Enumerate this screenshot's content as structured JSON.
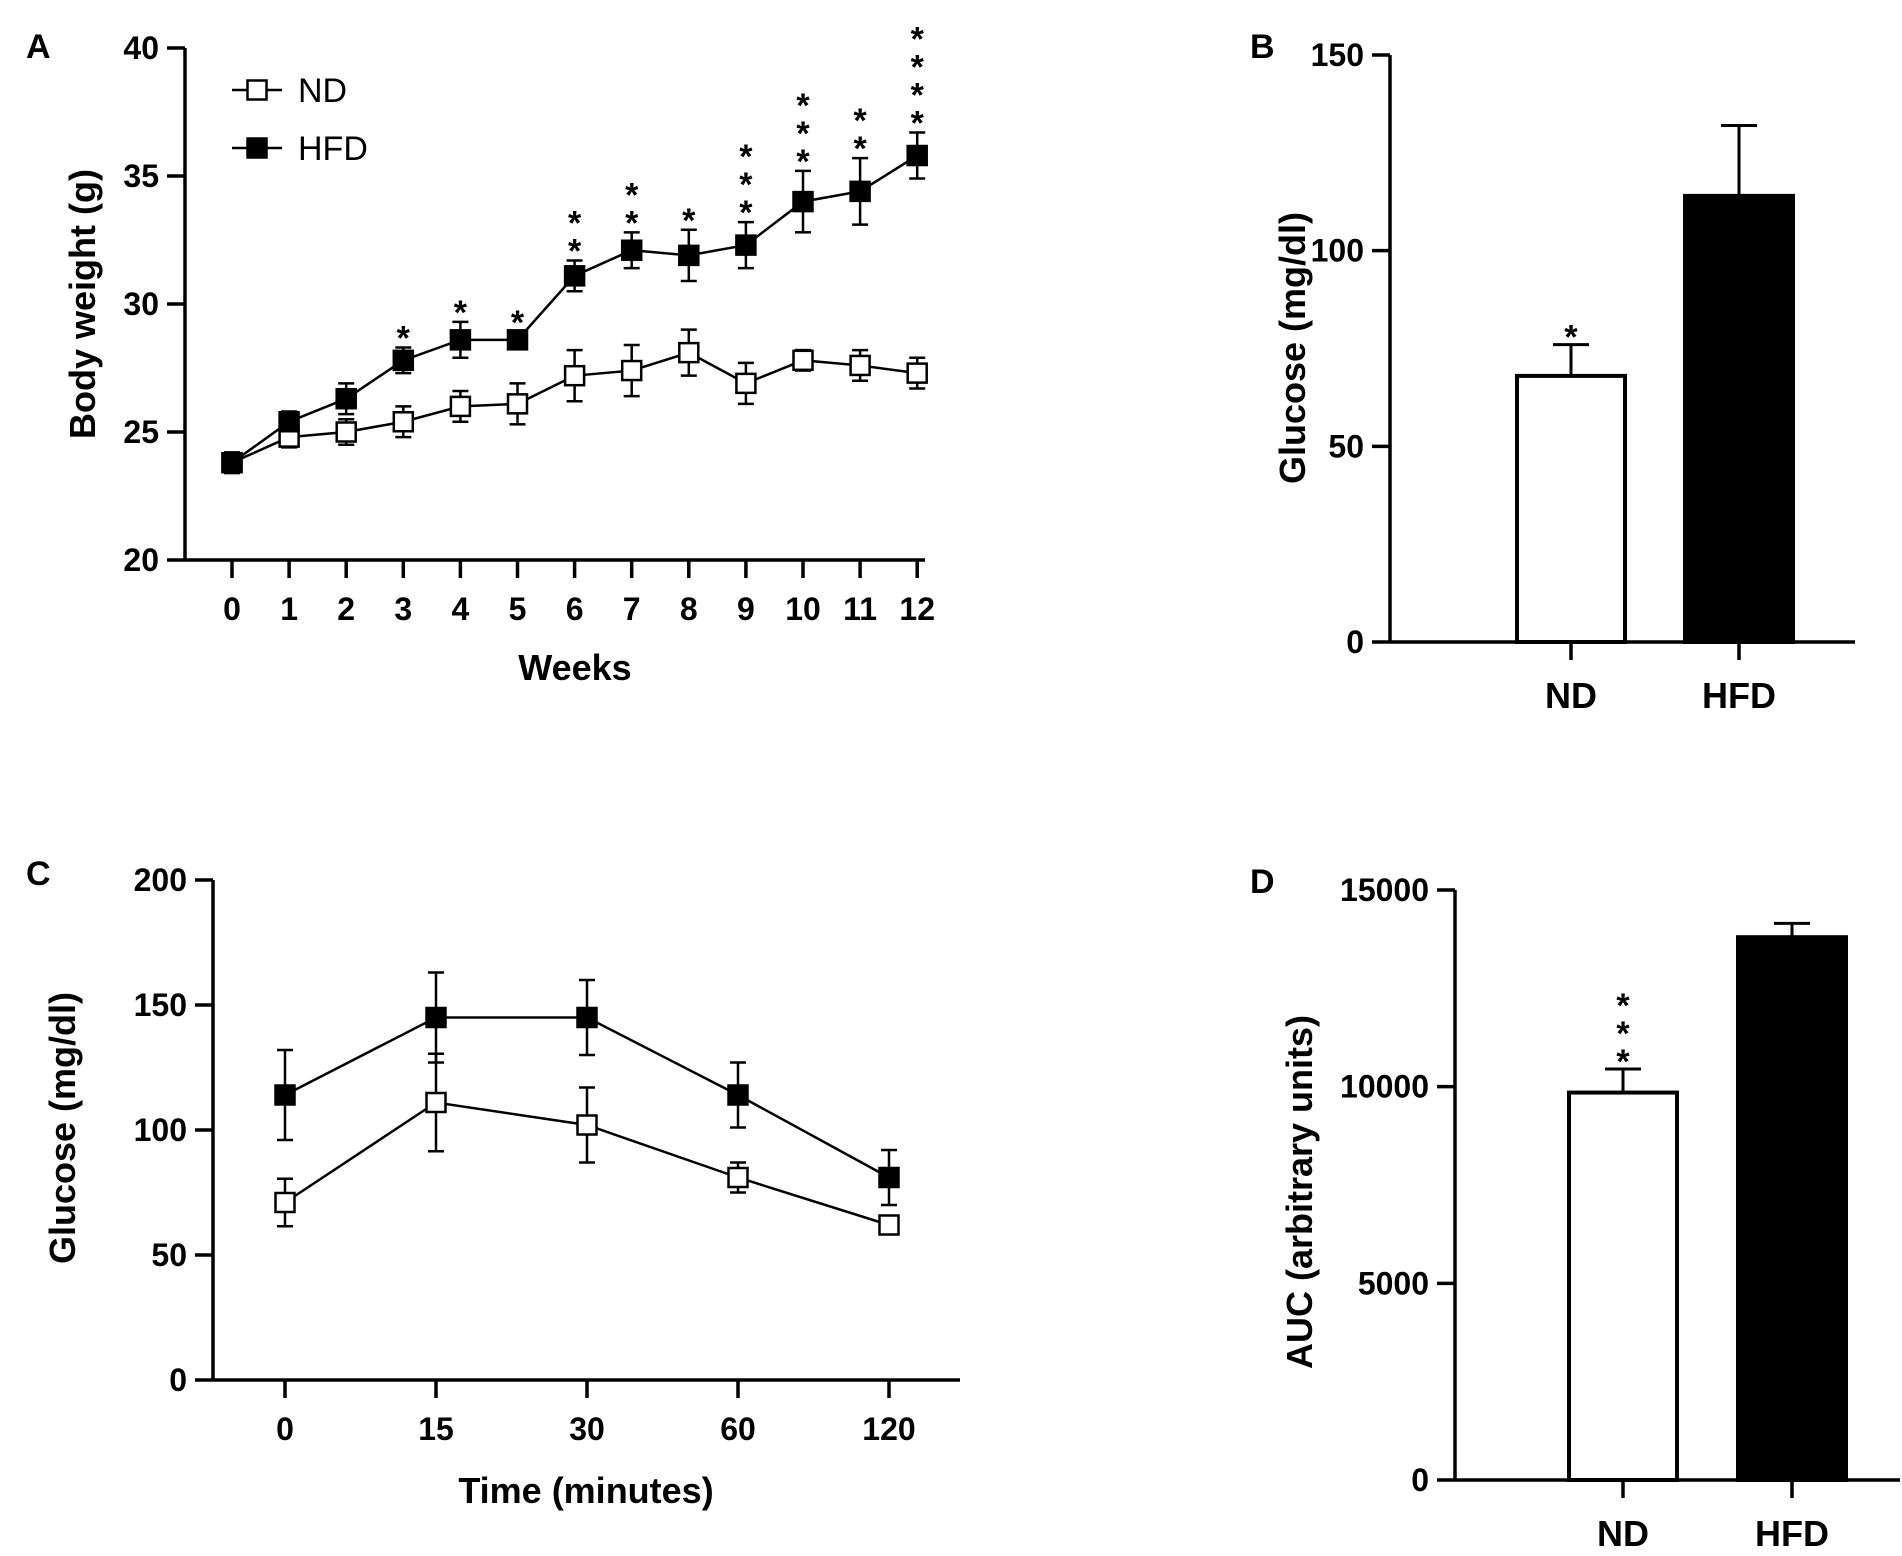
{
  "colors": {
    "ink": "#000000",
    "hfd_fill": "#000000",
    "nd_fill": "#ffffff"
  },
  "chart_data": [
    {
      "panel": "A",
      "type": "line",
      "xlabel": "Weeks",
      "ylabel": "Body weight (g)",
      "ylim": [
        20,
        40
      ],
      "yticks": [
        "20",
        "25",
        "30",
        "35",
        "40"
      ],
      "categories": [
        "0",
        "1",
        "2",
        "3",
        "4",
        "5",
        "6",
        "7",
        "8",
        "9",
        "10",
        "11",
        "12"
      ],
      "legend": {
        "placement": "top-left",
        "entries": [
          "ND",
          "HFD"
        ]
      },
      "series": [
        {
          "name": "ND",
          "marker": "open-square",
          "values": [
            23.8,
            24.8,
            25.0,
            25.4,
            26.0,
            26.1,
            27.2,
            27.4,
            28.1,
            26.9,
            27.8,
            27.6,
            27.3
          ],
          "errors": [
            0.4,
            0.4,
            0.5,
            0.6,
            0.6,
            0.8,
            1.0,
            1.0,
            0.9,
            0.8,
            0.4,
            0.6,
            0.6
          ]
        },
        {
          "name": "HFD",
          "marker": "filled-square",
          "values": [
            23.8,
            25.4,
            26.3,
            27.8,
            28.6,
            28.6,
            31.1,
            32.1,
            31.9,
            32.3,
            34.0,
            34.4,
            35.8
          ],
          "errors": [
            0.4,
            0.4,
            0.6,
            0.5,
            0.7,
            0.3,
            0.6,
            0.7,
            1.0,
            0.9,
            1.2,
            1.3,
            0.9
          ]
        }
      ],
      "annotations": [
        "",
        "",
        "",
        "*",
        "*",
        "*",
        "**",
        "**",
        "*",
        "***",
        "***",
        "**",
        "****"
      ]
    },
    {
      "panel": "B",
      "type": "bar",
      "xlabel": "",
      "ylabel": "Glucose (mg/dl)",
      "ylim": [
        0,
        150
      ],
      "yticks": [
        "0",
        "50",
        "100",
        "150"
      ],
      "categories": [
        "ND",
        "HFD"
      ],
      "values": [
        68,
        114
      ],
      "errors": [
        8,
        18
      ],
      "fills": [
        "open",
        "filled"
      ],
      "annotations": [
        "*",
        ""
      ]
    },
    {
      "panel": "C",
      "type": "line",
      "xlabel": "Time (minutes)",
      "ylabel": "Glucose (mg/dl)",
      "ylim": [
        0,
        200
      ],
      "yticks": [
        "0",
        "50",
        "100",
        "150",
        "200"
      ],
      "categories": [
        "0",
        "15",
        "30",
        "60",
        "120"
      ],
      "series": [
        {
          "name": "ND",
          "marker": "open-square",
          "values": [
            71,
            111,
            102,
            81,
            62
          ],
          "errors": [
            9.5,
            19.5,
            15,
            6,
            3
          ]
        },
        {
          "name": "HFD",
          "marker": "filled-square",
          "values": [
            114,
            145,
            145,
            114,
            81
          ],
          "errors": [
            18,
            18,
            15,
            13,
            11
          ]
        }
      ]
    },
    {
      "panel": "D",
      "type": "bar",
      "xlabel": "",
      "ylabel": "AUC (arbitrary units)",
      "ylim": [
        0,
        15000
      ],
      "yticks": [
        "0",
        "5000",
        "10000",
        "15000"
      ],
      "categories": [
        "ND",
        "HFD"
      ],
      "values": [
        9850,
        13800
      ],
      "errors": [
        600,
        350
      ],
      "fills": [
        "open",
        "filled"
      ],
      "annotations": [
        "***",
        ""
      ]
    }
  ]
}
